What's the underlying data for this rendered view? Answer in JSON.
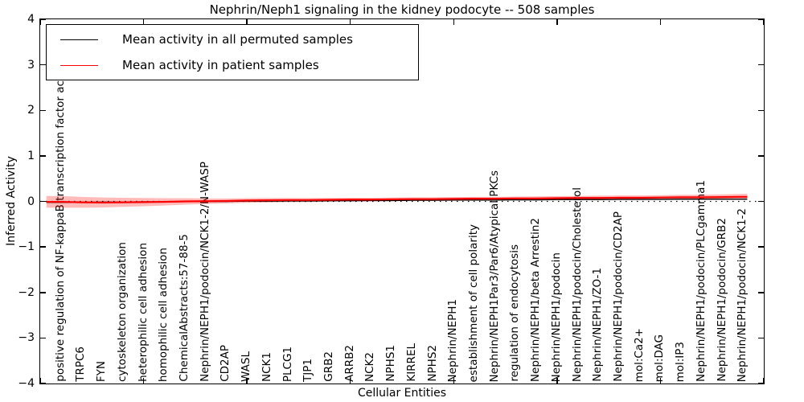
{
  "figure": {
    "title": "Nephrin/Neph1 signaling in the kidney podocyte -- 508 samples",
    "xlabel": "Cellular Entities",
    "ylabel": "Inferred Activity"
  },
  "legend": {
    "items": [
      {
        "label": "Mean activity in all permuted samples",
        "color": "#000000"
      },
      {
        "label": "Mean activity in patient samples",
        "color": "#ff0000"
      }
    ],
    "position": "upper left"
  },
  "chart_data": {
    "type": "line",
    "title": "Nephrin/Neph1 signaling in the kidney podocyte -- 508 samples",
    "xlabel": "Cellular Entities",
    "ylabel": "Inferred Activity",
    "xlim": [
      0,
      35
    ],
    "ylim": [
      -4,
      4
    ],
    "ytick_labels": [
      "4",
      "3",
      "2",
      "1",
      "0",
      "−1",
      "−2",
      "−3",
      "−4"
    ],
    "yticks": [
      4,
      3,
      2,
      1,
      0,
      -1,
      -2,
      -3,
      -4
    ],
    "xticks_numeric": [
      0,
      5,
      10,
      15,
      20,
      25,
      30,
      35
    ],
    "grid": false,
    "legend_position": "upper left",
    "zero_line": {
      "y": 0,
      "style": "dotted",
      "color": "#000000"
    },
    "categories": [
      "positive regulation of NF-kappaB transcription factor activity",
      "TRPC6",
      "FYN",
      "cytoskeleton organization",
      "heterophilic cell adhesion",
      "homophilic cell adhesion",
      "ChemicalAbstracts:57-88-5",
      "Nephrin/NEPH1/podocin/NCK1-2/N-WASP",
      "CD2AP",
      "WASL",
      "NCK1",
      "PLCG1",
      "TJP1",
      "GRB2",
      "ARRB2",
      "NCK2",
      "NPHS1",
      "KIRREL",
      "NPHS2",
      "Nephrin/NEPH1",
      "establishment of cell polarity",
      "Nephrin/NEPH1Par3/Par6/Atypical PKCs",
      "regulation of endocytosis",
      "Nephrin/NEPH1/beta Arrestin2",
      "Nephrin/NEPH1/podocin",
      "Nephrin/NEPH1/podocin/Cholesterol",
      "Nephrin/NEPH1/ZO-1",
      "Nephrin/NEPH1/podocin/CD2AP",
      "mol:Ca2+",
      "mol:DAG",
      "mol:IP3",
      "Nephrin/NEPH1/podocin/PLCgamma1",
      "Nephrin/NEPH1/podocin/GRB2",
      "Nephrin/NEPH1/podocin/NCK1-2"
    ],
    "series": [
      {
        "name": "Mean activity in all permuted samples",
        "color": "#000000",
        "line_width": 1.4,
        "values": [
          -0.02,
          -0.02,
          -0.015,
          -0.015,
          -0.01,
          -0.01,
          -0.005,
          0,
          0,
          0.005,
          0.005,
          0.01,
          0.01,
          0.015,
          0.015,
          0.02,
          0.02,
          0.025,
          0.025,
          0.03,
          0.03,
          0.03,
          0.035,
          0.035,
          0.04,
          0.04,
          0.04,
          0.045,
          0.045,
          0.045,
          0.05,
          0.05,
          0.05,
          0.05
        ]
      },
      {
        "name": "Mean activity in patient samples",
        "color": "#ff0000",
        "line_width": 2.2,
        "values": [
          -0.01,
          -0.02,
          -0.025,
          -0.02,
          -0.015,
          -0.01,
          0,
          0.005,
          0.01,
          0.02,
          0.025,
          0.03,
          0.03,
          0.035,
          0.04,
          0.04,
          0.045,
          0.05,
          0.05,
          0.055,
          0.06,
          0.06,
          0.065,
          0.065,
          0.07,
          0.075,
          0.075,
          0.08,
          0.08,
          0.085,
          0.09,
          0.09,
          0.095,
          0.1
        ],
        "band_halfwidth": [
          0.13,
          0.12,
          0.11,
          0.1,
          0.09,
          0.08,
          0.07,
          0.06,
          0.055,
          0.05,
          0.05,
          0.045,
          0.045,
          0.04,
          0.04,
          0.04,
          0.04,
          0.04,
          0.04,
          0.04,
          0.04,
          0.04,
          0.04,
          0.045,
          0.045,
          0.045,
          0.05,
          0.05,
          0.05,
          0.05,
          0.055,
          0.055,
          0.06,
          0.065
        ],
        "band_color": "#ff0000",
        "band_alpha": 0.27
      }
    ]
  }
}
